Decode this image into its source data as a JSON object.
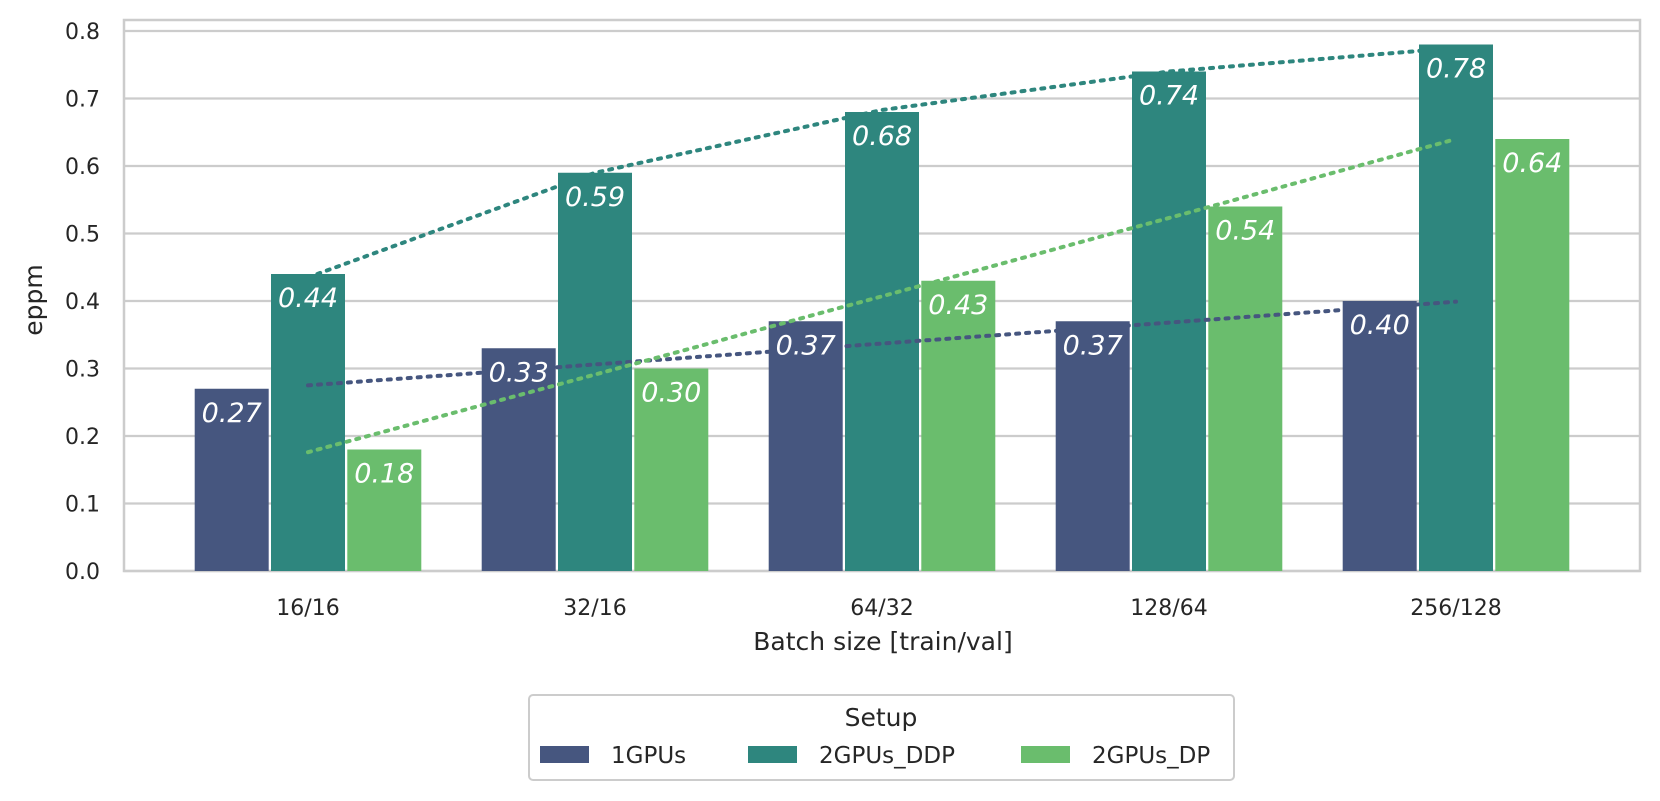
{
  "chart_data": {
    "type": "bar",
    "title": "",
    "xlabel": "Batch size [train/val]",
    "ylabel": "eppm",
    "ylim": [
      0,
      0.82
    ],
    "yticks": [
      "0.0",
      "0.1",
      "0.2",
      "0.3",
      "0.4",
      "0.5",
      "0.6",
      "0.7",
      "0.8"
    ],
    "ytick_values": [
      0,
      0.1,
      0.2,
      0.3,
      0.4,
      0.5,
      0.6,
      0.7,
      0.8
    ],
    "categories": [
      "16/16",
      "32/16",
      "64/32",
      "128/64",
      "256/128"
    ],
    "grid": true,
    "legend": {
      "title": "Setup",
      "placement": "bottom-center"
    },
    "series": [
      {
        "name": "1GPUs",
        "color": "#46567f",
        "values": [
          0.27,
          0.33,
          0.37,
          0.37,
          0.4
        ],
        "value_labels": [
          "0.27",
          "0.33",
          "0.37",
          "0.37",
          "0.40"
        ],
        "trend": [
          0.275,
          0.306,
          0.337,
          0.368,
          0.399
        ]
      },
      {
        "name": "2GPUs_DDP",
        "color": "#2e867e",
        "values": [
          0.44,
          0.59,
          0.68,
          0.74,
          0.78
        ],
        "value_labels": [
          "0.44",
          "0.59",
          "0.68",
          "0.74",
          "0.78"
        ],
        "trend": [
          0.435,
          0.59,
          0.683,
          0.74,
          0.775
        ]
      },
      {
        "name": "2GPUs_DP",
        "color": "#6abd6d",
        "values": [
          0.18,
          0.3,
          0.43,
          0.54,
          0.64
        ],
        "value_labels": [
          "0.18",
          "0.30",
          "0.43",
          "0.54",
          "0.64"
        ],
        "trend": [
          0.176,
          0.291,
          0.407,
          0.523,
          0.64
        ]
      }
    ]
  }
}
